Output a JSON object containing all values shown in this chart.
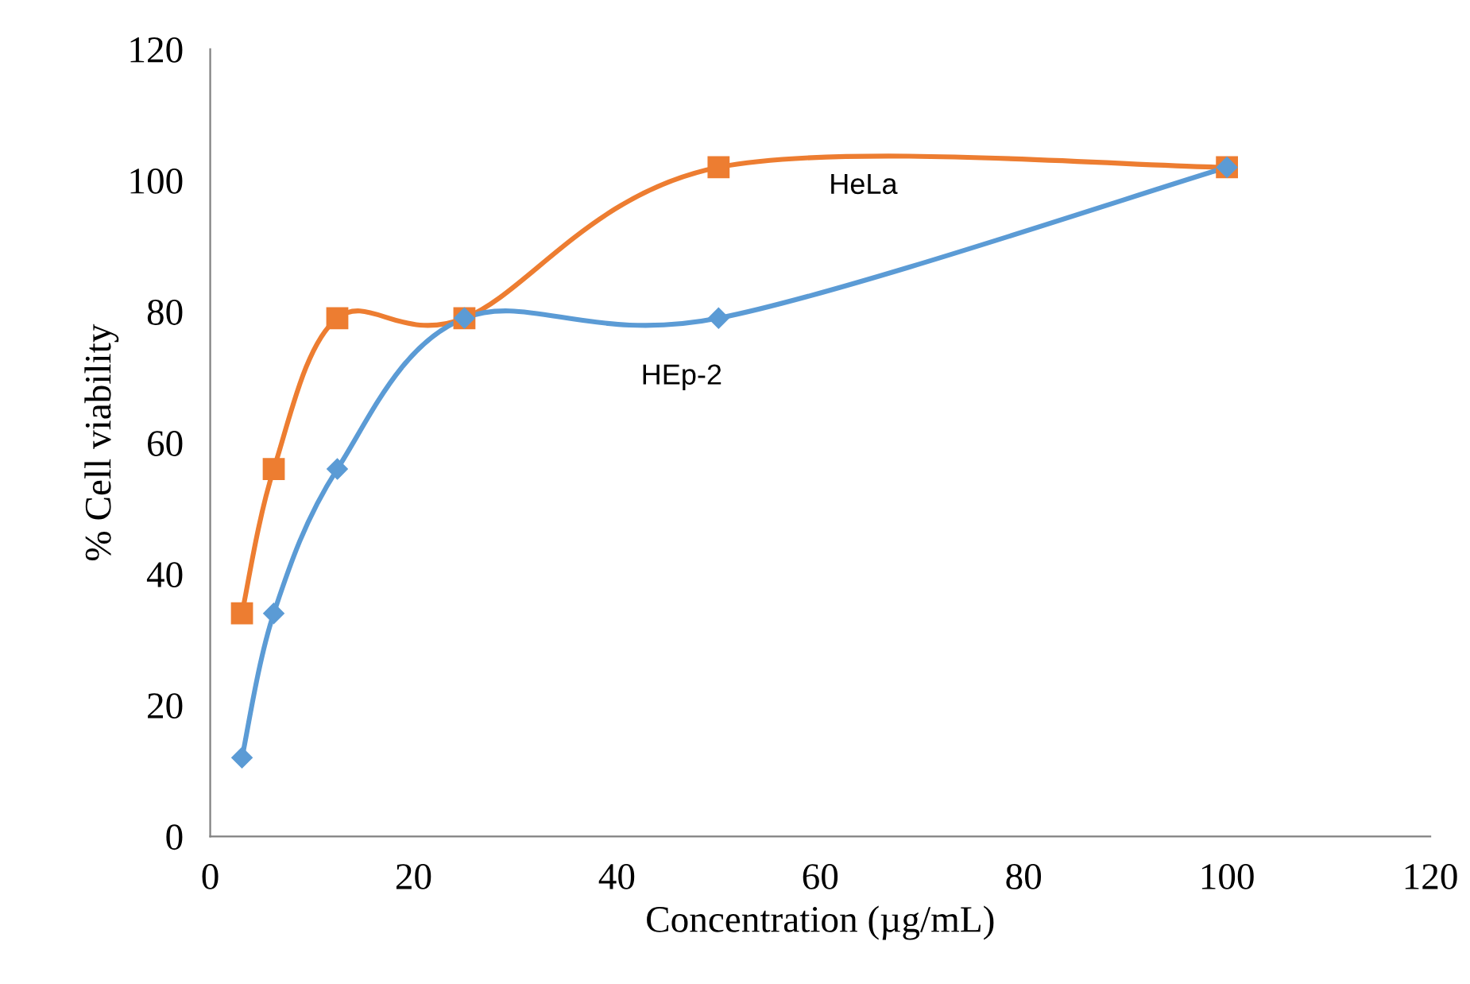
{
  "chart_data": {
    "type": "line",
    "xlabel": "Concentration (µg/mL)",
    "ylabel": "% Cell viability",
    "xlim": [
      0,
      120
    ],
    "xticks": [
      0,
      20,
      40,
      60,
      80,
      100,
      120
    ],
    "ylim": [
      0,
      120
    ],
    "yticks": [
      0,
      20,
      40,
      60,
      80,
      100,
      120
    ],
    "x": [
      3.125,
      6.25,
      12.5,
      25,
      50,
      100
    ],
    "grid": false,
    "legend": false,
    "series": [
      {
        "name": "HeLa",
        "color": "#ed7d31",
        "marker": "square",
        "values": [
          34,
          56,
          79,
          79,
          102,
          102
        ]
      },
      {
        "name": "HEp-2",
        "color": "#5b9bd5",
        "marker": "diamond",
        "values": [
          12,
          34,
          56,
          79,
          79,
          102
        ]
      }
    ]
  }
}
